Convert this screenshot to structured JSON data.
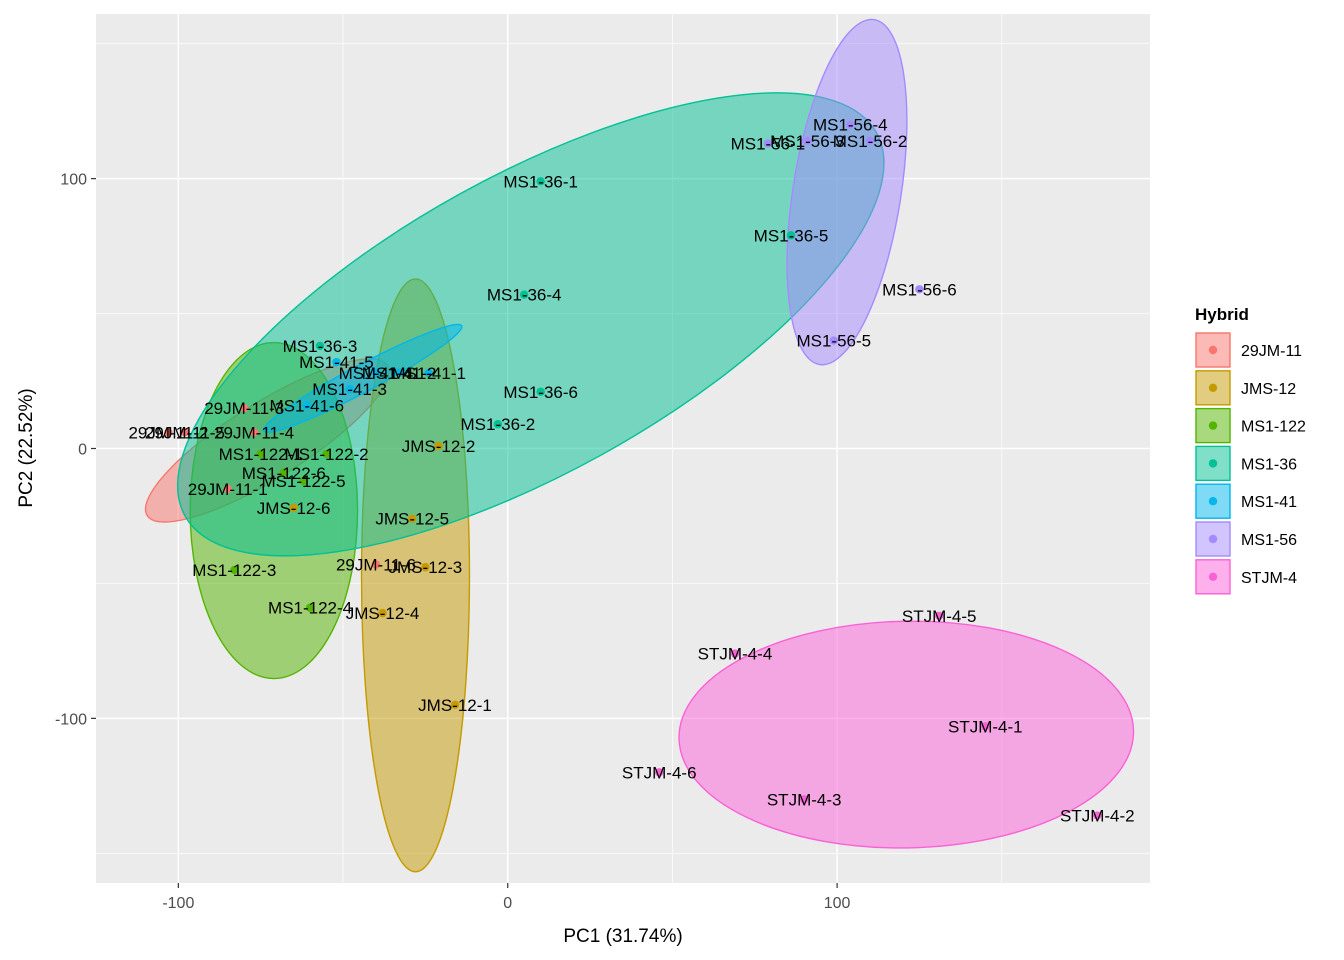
{
  "chart_data": {
    "type": "scatter",
    "xlabel": "PC1 (31.74%)",
    "ylabel": "PC2 (22.52%)",
    "xlim": [
      -125,
      195
    ],
    "ylim": [
      -161,
      161
    ],
    "x_ticks": [
      -100,
      0,
      100
    ],
    "y_ticks": [
      -100,
      0,
      100
    ],
    "x_tick_labels": [
      "-100",
      "0",
      "100"
    ],
    "y_tick_labels": [
      "-100",
      "0",
      "100"
    ],
    "grid": true,
    "legend": {
      "title": "Hybrid",
      "position": "right"
    },
    "series": [
      {
        "name": "29JM-11",
        "color": "#F8766D",
        "ellipse": {
          "cx": -73,
          "cy": 3,
          "rx": 43,
          "ry": 14,
          "angle": -32
        },
        "points": [
          {
            "label": "29JM-11-3",
            "x": -80,
            "y": 15
          },
          {
            "label": "29JM-11-2",
            "x": -103,
            "y": 6
          },
          {
            "label": "29JM-11-5",
            "x": -98,
            "y": 6
          },
          {
            "label": "29JM-11-4",
            "x": -77,
            "y": 6
          },
          {
            "label": "29JM-11-1",
            "x": -85,
            "y": -15
          },
          {
            "label": "29JM-11-6",
            "x": -40,
            "y": -43
          }
        ]
      },
      {
        "name": "JMS-12",
        "color": "#C49A00",
        "ellipse": {
          "cx": -28,
          "cy": -47,
          "rx": 90,
          "ry": 20,
          "angle": -90
        },
        "points": [
          {
            "label": "JMS-12-2",
            "x": -21,
            "y": 1
          },
          {
            "label": "JMS-12-5",
            "x": -29,
            "y": -26
          },
          {
            "label": "JMS-12-3",
            "x": -25,
            "y": -44
          },
          {
            "label": "JMS-12-4",
            "x": -38,
            "y": -61
          },
          {
            "label": "JMS-12-1",
            "x": -16,
            "y": -95
          },
          {
            "label": "JMS-12-6",
            "x": -65,
            "y": -22
          }
        ]
      },
      {
        "name": "MS1-122",
        "color": "#53B400",
        "ellipse": {
          "cx": -71,
          "cy": -23,
          "rx": 51,
          "ry": 31,
          "angle": -90
        },
        "points": [
          {
            "label": "MS1-122-1",
            "x": -75,
            "y": -2
          },
          {
            "label": "MS1-122-2",
            "x": -55,
            "y": -2
          },
          {
            "label": "MS1-122-6",
            "x": -68,
            "y": -9
          },
          {
            "label": "MS1-122-5",
            "x": -62,
            "y": -12
          },
          {
            "label": "MS1-122-3",
            "x": -83,
            "y": -45
          },
          {
            "label": "MS1-122-4",
            "x": -60,
            "y": -59
          }
        ]
      },
      {
        "name": "MS1-36",
        "color": "#00C094",
        "ellipse": {
          "cx": 7,
          "cy": 46,
          "rx": 120,
          "ry": 55,
          "angle": -29
        },
        "points": [
          {
            "label": "MS1-36-1",
            "x": 10,
            "y": 99
          },
          {
            "label": "MS1-36-4",
            "x": 5,
            "y": 57
          },
          {
            "label": "MS1-36-3",
            "x": -57,
            "y": 38
          },
          {
            "label": "MS1-36-6",
            "x": 10,
            "y": 21
          },
          {
            "label": "MS1-36-2",
            "x": -3,
            "y": 9
          },
          {
            "label": "MS1-36-5",
            "x": 86,
            "y": 79
          }
        ]
      },
      {
        "name": "MS1-41",
        "color": "#00B6EB",
        "ellipse": {
          "cx": -44,
          "cy": 26,
          "rx": 34,
          "ry": 5,
          "angle": -28
        },
        "points": [
          {
            "label": "MS1-41-5",
            "x": -52,
            "y": 32
          },
          {
            "label": "MS1-41-1",
            "x": -24,
            "y": 28
          },
          {
            "label": "MS1-41-4",
            "x": -40,
            "y": 28
          },
          {
            "label": "MS1-41-2",
            "x": -33,
            "y": 28
          },
          {
            "label": "MS1-41-3",
            "x": -48,
            "y": 22
          },
          {
            "label": "MS1-41-6",
            "x": -61,
            "y": 16
          }
        ]
      },
      {
        "name": "MS1-56",
        "color": "#A58AFF",
        "ellipse": {
          "cx": 103,
          "cy": 95,
          "rx": 53,
          "ry": 20,
          "angle": -81
        },
        "points": [
          {
            "label": "MS1-56-4",
            "x": 104,
            "y": 120
          },
          {
            "label": "MS1-56-3",
            "x": 91,
            "y": 114
          },
          {
            "label": "MS1-56-2",
            "x": 110,
            "y": 114
          },
          {
            "label": "MS1-56-1",
            "x": 79,
            "y": 113
          },
          {
            "label": "MS1-56-6",
            "x": 125,
            "y": 59
          },
          {
            "label": "MS1-56-5",
            "x": 99,
            "y": 40
          }
        ]
      },
      {
        "name": "STJM-4",
        "color": "#FB61D7",
        "ellipse": {
          "cx": 121,
          "cy": -106,
          "rx": 69,
          "ry": 42,
          "angle": -1
        },
        "points": [
          {
            "label": "STJM-4-5",
            "x": 131,
            "y": -62
          },
          {
            "label": "STJM-4-4",
            "x": 69,
            "y": -76
          },
          {
            "label": "STJM-4-1",
            "x": 145,
            "y": -103
          },
          {
            "label": "STJM-4-6",
            "x": 46,
            "y": -120
          },
          {
            "label": "STJM-4-3",
            "x": 90,
            "y": -130
          },
          {
            "label": "STJM-4-2",
            "x": 179,
            "y": -136
          }
        ]
      }
    ]
  }
}
